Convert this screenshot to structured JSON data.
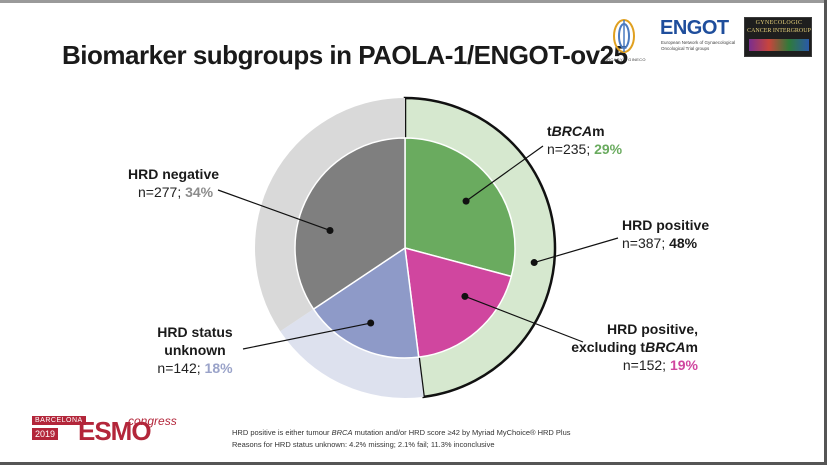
{
  "slide": {
    "title": "Biomarker subgroups in PAOLA-1/ENGOT-ov25"
  },
  "logos": {
    "arcagy_text": "ARCAGY – GINECO",
    "engot_name": "ENGOT",
    "engot_subtitle": "European Network of Gynaecological Oncological Trial groups",
    "gcig_line1": "GYNECOLOGIC",
    "gcig_line2": "CANCER INTERGROUP"
  },
  "colors": {
    "hrd_negative": "#7f7f7f",
    "hrd_negative_ring": "#d9d9d9",
    "hrd_unknown": "#8e9ac8",
    "hrd_unknown_ring": "#dde1ee",
    "tbrcam": "#6aab5f",
    "hrd_pos_excl": "#d0469f",
    "hrd_positive_ring": "#d6e8cf",
    "tbrcam_pct": "#6aab5f",
    "excl_pct": "#d0469f",
    "neg_pct": "#8c8c8c",
    "unknown_pct": "#9aa3c9"
  },
  "chart_data": {
    "type": "pie",
    "title": "Biomarker subgroups in PAOLA-1/ENGOT-ov25",
    "outer_ring": [
      {
        "label": "HRD positive",
        "n": 387,
        "percent": 48
      },
      {
        "label": "HRD negative",
        "n": 277,
        "percent": 34
      },
      {
        "label": "HRD status unknown",
        "n": 142,
        "percent": 18
      }
    ],
    "inner_pie": [
      {
        "label": "tBRCAm",
        "n": 235,
        "percent": 29
      },
      {
        "label": "HRD positive, excluding tBRCAm",
        "n": 152,
        "percent": 19
      },
      {
        "label": "HRD status unknown",
        "n": 142,
        "percent": 18
      },
      {
        "label": "HRD negative",
        "n": 277,
        "percent": 34
      }
    ]
  },
  "labels": {
    "tbrcam": {
      "name_prefix": "t",
      "name_italic": "BRCA",
      "name_suffix": "m",
      "stats": "n=235; ",
      "pct": "29%"
    },
    "hrd_positive": {
      "name": "HRD positive",
      "stats": "n=387; ",
      "pct": "48%"
    },
    "hrd_pos_excl": {
      "line1": "HRD positive,",
      "line2_prefix": "excluding t",
      "line2_italic": "BRCA",
      "line2_suffix": "m",
      "stats": "n=152; ",
      "pct": "19%"
    },
    "hrd_negative": {
      "name": "HRD negative",
      "stats": "n=277; ",
      "pct": "34%"
    },
    "hrd_unknown": {
      "line1": "HRD status",
      "line2": "unknown",
      "stats": "n=142; ",
      "pct": "18%"
    }
  },
  "footer": {
    "line1_a": "HRD positive is either tumour ",
    "line1_italic": "BRCA",
    "line1_b": " mutation and/or HRD score ≥42 by Myriad MyChoice® HRD Plus",
    "line2": "Reasons for HRD status unknown: 4.2% missing; 2.1% fail; 11.3% inconclusive",
    "esmo_city": "BARCELONA",
    "esmo_year": "2019",
    "esmo_name": "ESMO",
    "esmo_congress": "congress"
  }
}
